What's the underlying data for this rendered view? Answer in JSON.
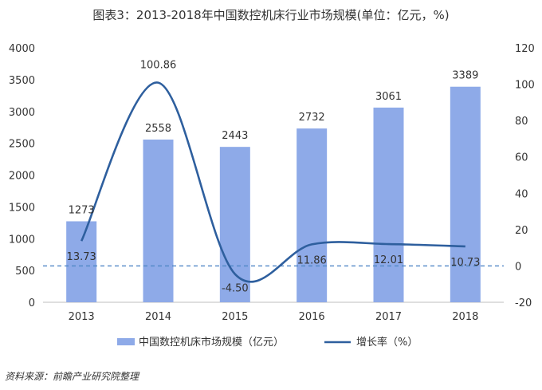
{
  "chart_data": {
    "type": "bar+line",
    "title": "图表3：2013-2018年中国数控机床行业市场规模(单位：亿元，%)",
    "categories": [
      "2013",
      "2014",
      "2015",
      "2016",
      "2017",
      "2018"
    ],
    "series": [
      {
        "name": "中国数控机床市场规模（亿元）",
        "type": "bar",
        "axis": "left",
        "values": [
          1273,
          2558,
          2443,
          2732,
          3061,
          3389
        ],
        "value_labels": [
          "1273",
          "2558",
          "2443",
          "2732",
          "3061",
          "3389"
        ]
      },
      {
        "name": "增长率（%）",
        "type": "line",
        "axis": "right",
        "smooth": true,
        "values": [
          13.73,
          100.86,
          -4.5,
          11.86,
          12.01,
          10.73
        ],
        "value_labels": [
          "13.73",
          "100.86",
          "-4.50",
          "11.86",
          "12.01",
          "10.73"
        ]
      }
    ],
    "y_left": {
      "min": 0,
      "max": 4000,
      "ticks": [
        0,
        500,
        1000,
        1500,
        2000,
        2500,
        3000,
        3500,
        4000
      ]
    },
    "y_right": {
      "min": -20,
      "max": 120,
      "ticks": [
        -20,
        0,
        20,
        40,
        60,
        80,
        100,
        120
      ]
    },
    "zero_reference_line": {
      "axis": "right",
      "value": 0,
      "style": "dashed"
    },
    "legend_position": "bottom",
    "grid": false,
    "colors": {
      "bar": "#8eaae8",
      "line": "#2e5f9e",
      "zero_line": "#4f86c6"
    }
  },
  "source_note": "资料来源：前瞻产业研究院整理"
}
